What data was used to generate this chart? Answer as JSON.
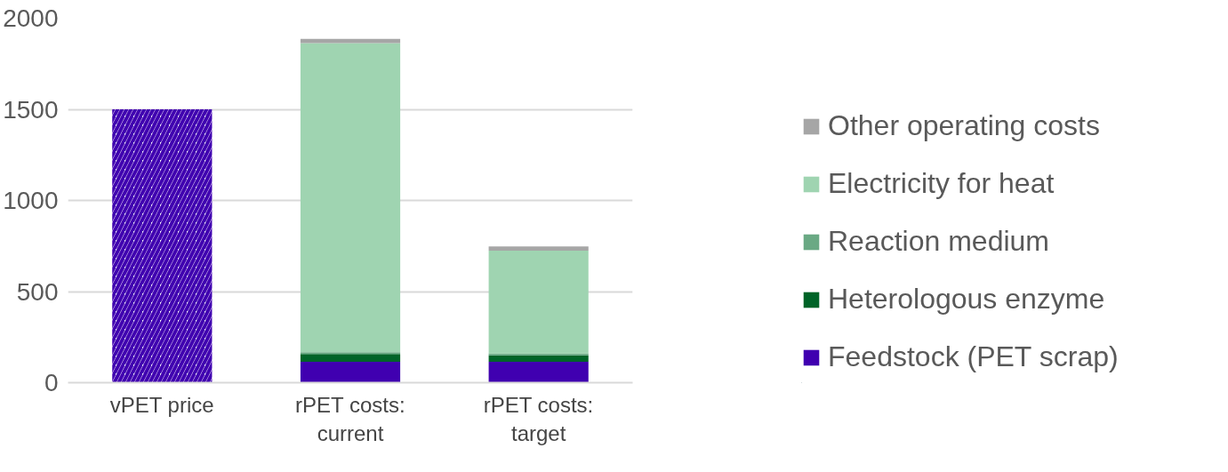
{
  "chart_data": {
    "type": "bar",
    "stacked": true,
    "categories": [
      "vPET price",
      "rPET costs:\ncurrent",
      "rPET costs:\ntarget"
    ],
    "series": [
      {
        "color": "#4000b0",
        "values": [
          1500,
          null,
          null
        ]
      },
      {
        "name": "Feedstock (PET scrap)",
        "color": "#4000b0",
        "values": [
          null,
          115,
          115
        ]
      },
      {
        "name": "Heterologous enzyme",
        "color": "#006428",
        "values": [
          null,
          42,
          35
        ]
      },
      {
        "name": "Reaction medium",
        "color": "#6aa984",
        "values": [
          null,
          10,
          10
        ]
      },
      {
        "name": "Electricity for heat",
        "color": "#9fd4b1",
        "values": [
          null,
          1697,
          565
        ]
      },
      {
        "name": "Other operating costs",
        "color": "#a6a6a6",
        "values": [
          null,
          23,
          22
        ]
      }
    ],
    "ylim": [
      0,
      2000
    ],
    "yticks": [
      0,
      500,
      1000,
      1500,
      2000
    ],
    "grid": "y",
    "legend": "right"
  }
}
